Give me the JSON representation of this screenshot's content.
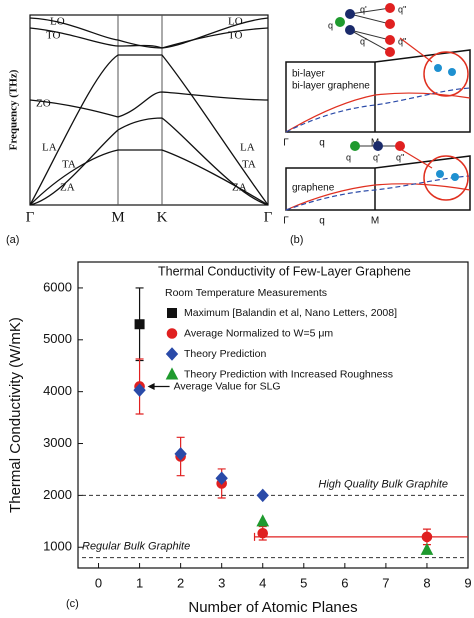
{
  "panel_a": {
    "label": "(a)",
    "y_label": "Frequency (THz)",
    "points": [
      "Γ",
      "M",
      "K",
      "Γ"
    ],
    "branches_left": [
      "LO",
      "TO",
      "ZO",
      "LA",
      "TA",
      "ZA"
    ],
    "branches_right": [
      "LO",
      "TO",
      "LA",
      "TA",
      "ZA"
    ]
  },
  "panel_b": {
    "label": "(b)",
    "top": {
      "title": "bi-layer graphene",
      "axis": [
        "Γ",
        "q",
        "M"
      ],
      "nodes": [
        "q",
        "q'",
        "q''",
        "q'",
        "q''"
      ]
    },
    "bottom": {
      "title": "graphene",
      "axis": [
        "Γ",
        "q",
        "M"
      ],
      "nodes": [
        "q",
        "q'",
        "q''"
      ]
    }
  },
  "chart_data": {
    "type": "scatter",
    "panel_label": "(c)",
    "title": "Thermal Conductivity of Few-Layer Graphene",
    "subtitle": "Room Temperature Measurements",
    "x_label": "Number of Atomic Planes",
    "y_label": "Thermal Conductivity (W/mK)",
    "xlim": [
      -0.5,
      9
    ],
    "xticks": [
      0,
      1,
      2,
      3,
      4,
      5,
      6,
      7,
      8,
      9
    ],
    "ylim": [
      600,
      6500
    ],
    "yticks": [
      1000,
      2000,
      3000,
      4000,
      5000,
      6000
    ],
    "series": [
      {
        "name": "Maximum [Balandin et al, Nano Letters, 2008]",
        "color": "#111111",
        "marker": "square",
        "x": [
          1
        ],
        "values": [
          5300
        ],
        "errors": [
          700
        ]
      },
      {
        "name": "Average Normalized to W=5 μm",
        "color": "#e02020",
        "marker": "circle",
        "x": [
          1,
          2,
          3,
          4,
          8
        ],
        "values": [
          4100,
          2750,
          2230,
          1270,
          1200
        ],
        "errors": [
          530,
          370,
          280,
          130,
          150
        ],
        "x_errors": [
          null,
          null,
          null,
          null,
          4.2
        ]
      },
      {
        "name": "Theory Prediction",
        "color": "#2a4aa8",
        "marker": "diamond",
        "x": [
          1,
          2,
          3,
          4
        ],
        "values": [
          4030,
          2800,
          2330,
          2000
        ]
      },
      {
        "name": "Theory Prediction with Increased Roughness",
        "color": "#1f9a2e",
        "marker": "triangle",
        "x": [
          4,
          8
        ],
        "values": [
          1500,
          950
        ]
      }
    ],
    "reference_lines": [
      {
        "value": 2000,
        "label": "High Quality Bulk Graphite"
      },
      {
        "value": 800,
        "label": "Regular Bulk Graphite"
      }
    ],
    "annotation": {
      "text": "Average Value for SLG",
      "x": 1,
      "y": 4100
    }
  }
}
